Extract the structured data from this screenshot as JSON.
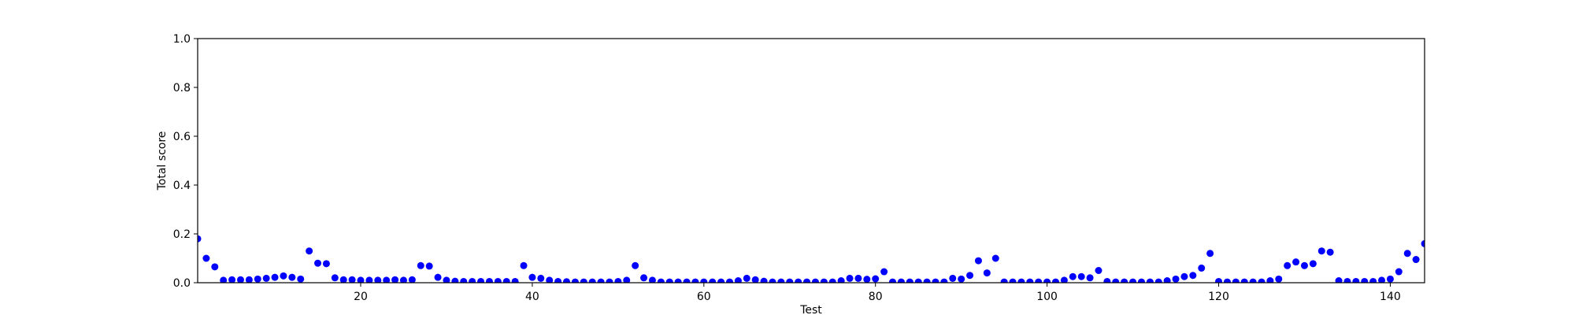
{
  "chart_data": {
    "type": "scatter",
    "xlabel": "Test",
    "ylabel": "Total score",
    "color": "#0000ff",
    "xlim": [
      1,
      144
    ],
    "ylim": [
      0,
      1
    ],
    "xticks": [
      20,
      40,
      60,
      80,
      100,
      120,
      140
    ],
    "yticks": [
      {
        "value": 0,
        "label": "0.0"
      },
      0.2,
      0.4,
      0.6,
      0.8,
      {
        "value": 1,
        "label": "1.0"
      }
    ],
    "x": [
      1,
      2,
      3,
      4,
      5,
      6,
      7,
      8,
      9,
      10,
      11,
      12,
      13,
      14,
      15,
      16,
      17,
      18,
      19,
      20,
      21,
      22,
      23,
      24,
      25,
      26,
      27,
      28,
      29,
      30,
      31,
      32,
      33,
      34,
      35,
      36,
      37,
      38,
      39,
      40,
      41,
      42,
      43,
      44,
      45,
      46,
      47,
      48,
      49,
      50,
      51,
      52,
      53,
      54,
      55,
      56,
      57,
      58,
      59,
      60,
      61,
      62,
      63,
      64,
      65,
      66,
      67,
      68,
      69,
      70,
      71,
      72,
      73,
      74,
      75,
      76,
      77,
      78,
      79,
      80,
      81,
      82,
      83,
      84,
      85,
      86,
      87,
      88,
      89,
      90,
      91,
      92,
      93,
      94,
      95,
      96,
      97,
      98,
      99,
      100,
      101,
      102,
      103,
      104,
      105,
      106,
      107,
      108,
      109,
      110,
      111,
      112,
      113,
      114,
      115,
      116,
      117,
      118,
      119,
      120,
      121,
      122,
      123,
      124,
      125,
      126,
      127,
      128,
      129,
      130,
      131,
      132,
      133,
      134,
      135,
      136,
      137,
      138,
      139,
      140,
      141,
      142,
      143,
      144
    ],
    "values": [
      0.18,
      0.1,
      0.065,
      0.01,
      0.012,
      0.012,
      0.012,
      0.015,
      0.018,
      0.022,
      0.028,
      0.022,
      0.015,
      0.13,
      0.08,
      0.078,
      0.02,
      0.012,
      0.012,
      0.01,
      0.01,
      0.01,
      0.01,
      0.012,
      0.01,
      0.012,
      0.07,
      0.068,
      0.022,
      0.01,
      0.006,
      0.005,
      0.005,
      0.005,
      0.005,
      0.005,
      0.005,
      0.005,
      0.07,
      0.022,
      0.018,
      0.01,
      0.005,
      0.004,
      0.003,
      0.003,
      0.003,
      0.003,
      0.003,
      0.005,
      0.01,
      0.07,
      0.02,
      0.01,
      0.003,
      0.003,
      0.003,
      0.003,
      0.003,
      0.003,
      0.003,
      0.003,
      0.003,
      0.008,
      0.018,
      0.012,
      0.006,
      0.003,
      0.003,
      0.003,
      0.003,
      0.003,
      0.003,
      0.003,
      0.003,
      0.008,
      0.018,
      0.018,
      0.014,
      0.016,
      0.045,
      0.003,
      0.003,
      0.003,
      0.003,
      0.003,
      0.003,
      0.003,
      0.018,
      0.015,
      0.03,
      0.09,
      0.04,
      0.1,
      0.003,
      0.003,
      0.003,
      0.003,
      0.003,
      0.003,
      0.003,
      0.01,
      0.025,
      0.025,
      0.02,
      0.05,
      0.005,
      0.003,
      0.003,
      0.003,
      0.003,
      0.003,
      0.003,
      0.008,
      0.015,
      0.025,
      0.03,
      0.06,
      0.12,
      0.005,
      0.003,
      0.003,
      0.003,
      0.003,
      0.003,
      0.008,
      0.015,
      0.07,
      0.085,
      0.07,
      0.078,
      0.13,
      0.125,
      0.008,
      0.005,
      0.005,
      0.005,
      0.005,
      0.01,
      0.015,
      0.045,
      0.12,
      0.095,
      0.16
    ]
  }
}
